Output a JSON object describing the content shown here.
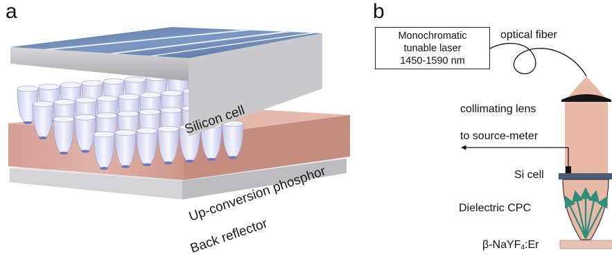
{
  "panel_a": {
    "letter": "a",
    "layers": {
      "top": "Silicon cell",
      "middle": "Up-conversion phosphor",
      "bottom": "Back reflector"
    },
    "colors": {
      "silicon_top": "#6a86b4",
      "silicon_side": "#c9c9cc",
      "phosphor": "#d7a69b",
      "reflector": "#dcdcde",
      "cup": "#e6e8f6"
    }
  },
  "panel_b": {
    "letter": "b",
    "laser_box": [
      "Monochromatic",
      "tunable laser",
      "1450-1590 nm"
    ],
    "labels": {
      "fiber": "optical fiber",
      "lens": "collimating lens",
      "meter": "to source-meter",
      "si_cell": "Si cell",
      "cpc": "Dielectric CPC",
      "phosphor_main": "β-NaYF",
      "phosphor_sub": "4",
      "phosphor_tail": ":Er"
    },
    "colors": {
      "beam": "#e9b9a8",
      "lens": "#151515",
      "si_cell": "#4c5c78",
      "arrows": "#2e8e7a",
      "substrate": "#e8c3b6"
    }
  }
}
